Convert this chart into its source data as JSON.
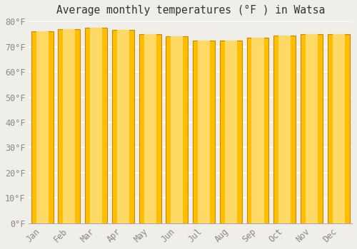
{
  "title": "Average monthly temperatures (°F ) in Watsa",
  "months": [
    "Jan",
    "Feb",
    "Mar",
    "Apr",
    "May",
    "Jun",
    "Jul",
    "Aug",
    "Sep",
    "Oct",
    "Nov",
    "Dec"
  ],
  "values": [
    76.0,
    77.0,
    77.5,
    76.5,
    75.0,
    74.0,
    72.5,
    72.5,
    73.5,
    74.5,
    75.0,
    75.0
  ],
  "bar_color_main": "#FFBE00",
  "bar_color_light": "#FFD966",
  "bar_color_edge": "#CC8800",
  "background_color": "#F0EEE8",
  "plot_bg_color": "#F0EEE8",
  "ylim": [
    0,
    80
  ],
  "ytick_step": 10,
  "title_fontsize": 10.5,
  "tick_fontsize": 8.5,
  "grid_color": "#DDDDDD",
  "grid_linewidth": 1.0,
  "tick_color": "#888888"
}
